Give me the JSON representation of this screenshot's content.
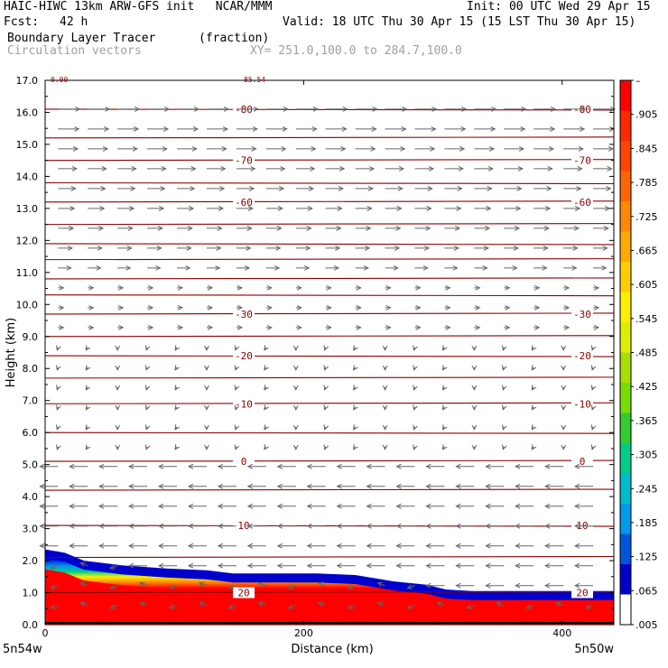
{
  "header": {
    "title_left": "HAIC-HIWC 13km ARW-GFS init   NCAR/MMM",
    "init": "Init: 00 UTC Wed 29 Apr 15",
    "fcst_label": "Fcst:",
    "fcst_value": "42 h",
    "valid": "Valid: 18 UTC Thu 30 Apr 15 (15 LST Thu 30 Apr 15)",
    "field1_name": "Boundary Layer Tracer",
    "field1_units": "(fraction)",
    "field2_name": "Circulation vectors",
    "cross_section": "XY= 251.0,100.0 to 284.7,100.0"
  },
  "chart_data": {
    "type": "heatmap",
    "xlabel": "Distance (km)",
    "ylabel": "Height (km)",
    "xlim": [
      0,
      440
    ],
    "ylim": [
      0,
      17
    ],
    "x_ticks": [
      0,
      200,
      400
    ],
    "y_ticks": [
      "0.0",
      "1.0",
      "2.0",
      "3.0",
      "4.0",
      "5.0",
      "6.0",
      "7.0",
      "8.0",
      "9.0",
      "10.0",
      "11.0",
      "12.0",
      "13.0",
      "14.0",
      "15.0",
      "16.0",
      "17.0"
    ],
    "x_end_labels": {
      "left": "5n54w",
      "right": "5n50w"
    },
    "colorbar_labels": [
      "–",
      ".905",
      ".845",
      ".785",
      ".725",
      ".665",
      ".605",
      ".545",
      ".485",
      ".425",
      ".365",
      ".305",
      ".245",
      ".185",
      ".125",
      ".065",
      ".005"
    ],
    "colorbar_colors": [
      "#ff0000",
      "#ff2800",
      "#ff4400",
      "#ff6600",
      "#ff8800",
      "#ffaa00",
      "#ffcc00",
      "#ffee00",
      "#ddee00",
      "#aadd00",
      "#77dd00",
      "#33cc33",
      "#00cc88",
      "#00bbcc",
      "#0099ee",
      "#0055dd",
      "#0000cc",
      "#ffffff"
    ],
    "pbl_top_km": [
      {
        "x": 0,
        "h": 2.35
      },
      {
        "x": 15,
        "h": 2.25
      },
      {
        "x": 30,
        "h": 2.0
      },
      {
        "x": 60,
        "h": 1.85
      },
      {
        "x": 95,
        "h": 1.75
      },
      {
        "x": 125,
        "h": 1.7
      },
      {
        "x": 145,
        "h": 1.6
      },
      {
        "x": 175,
        "h": 1.6
      },
      {
        "x": 210,
        "h": 1.6
      },
      {
        "x": 240,
        "h": 1.55
      },
      {
        "x": 270,
        "h": 1.35
      },
      {
        "x": 295,
        "h": 1.25
      },
      {
        "x": 310,
        "h": 1.1
      },
      {
        "x": 330,
        "h": 1.05
      },
      {
        "x": 380,
        "h": 1.05
      },
      {
        "x": 440,
        "h": 1.05
      }
    ],
    "isotherms": [
      {
        "h": 16.1,
        "label": "-80"
      },
      {
        "h": 15.2,
        "label": ""
      },
      {
        "h": 14.5,
        "label": "-70"
      },
      {
        "h": 13.8,
        "label": ""
      },
      {
        "h": 13.2,
        "label": "-60"
      },
      {
        "h": 12.5,
        "label": ""
      },
      {
        "h": 11.9,
        "label": ""
      },
      {
        "h": 11.4,
        "label": ""
      },
      {
        "h": 10.8,
        "label": ""
      },
      {
        "h": 10.3,
        "label": ""
      },
      {
        "h": 9.7,
        "label": "-30"
      },
      {
        "h": 9.0,
        "label": ""
      },
      {
        "h": 8.4,
        "label": "-20"
      },
      {
        "h": 7.7,
        "label": ""
      },
      {
        "h": 6.9,
        "label": "-10"
      },
      {
        "h": 6.0,
        "label": ""
      },
      {
        "h": 5.1,
        "label": "0"
      },
      {
        "h": 4.2,
        "label": ""
      },
      {
        "h": 3.1,
        "label": "10"
      },
      {
        "h": 2.1,
        "label": ""
      },
      {
        "h": 1.0,
        "label": "20"
      }
    ],
    "corner_marks": [
      "0.00",
      "85.54"
    ]
  }
}
